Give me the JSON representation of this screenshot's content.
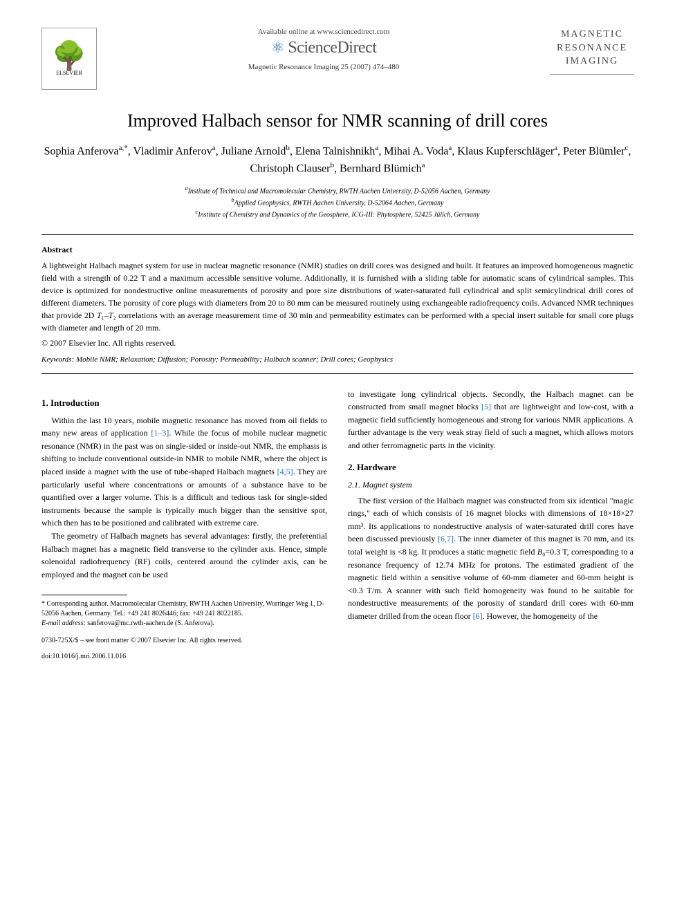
{
  "header": {
    "elsevier_label": "ELSEVIER",
    "available_online": "Available online at www.sciencedirect.com",
    "sciencedirect": "ScienceDirect",
    "journal_ref": "Magnetic Resonance Imaging 25 (2007) 474–480",
    "journal_logo_line1": "MAGNETIC",
    "journal_logo_line2": "RESONANCE",
    "journal_logo_line3": "IMAGING"
  },
  "title": "Improved Halbach sensor for NMR scanning of drill cores",
  "authors_html": "Sophia Anferova<sup>a,*</sup>, Vladimir Anferov<sup>a</sup>, Juliane Arnold<sup>b</sup>, Elena Talnishnikh<sup>a</sup>, Mihai A. Voda<sup>a</sup>, Klaus Kupferschläger<sup>a</sup>, Peter Blümler<sup>c</sup>, Christoph Clauser<sup>b</sup>, Bernhard Blümich<sup>a</sup>",
  "affiliations": {
    "a": "Institute of Technical and Macromolecular Chemistry, RWTH Aachen University, D-52056 Aachen, Germany",
    "b": "Applied Geophysics, RWTH Aachen University, D-52064 Aachen, Germany",
    "c": "Institute of Chemistry and Dynamics of the Geosphere, ICG-III: Phytosphere, 52425 Jülich, Germany"
  },
  "abstract": {
    "label": "Abstract",
    "text": "A lightweight Halbach magnet system for use in nuclear magnetic resonance (NMR) studies on drill cores was designed and built. It features an improved homogeneous magnetic field with a strength of 0.22 T and a maximum accessible sensitive volume. Additionally, it is furnished with a sliding table for automatic scans of cylindrical samples. This device is optimized for nondestructive online measurements of porosity and pore size distributions of water-saturated full cylindrical and split semicylindrical drill cores of different diameters. The porosity of core plugs with diameters from 20 to 80 mm can be measured routinely using exchangeable radiofrequency coils. Advanced NMR techniques that provide 2D T₁–T₂ correlations with an average measurement time of 30 min and permeability estimates can be performed with a special insert suitable for small core plugs with diameter and length of 20 mm.",
    "copyright": "© 2007 Elsevier Inc. All rights reserved."
  },
  "keywords": "Keywords: Mobile NMR; Relaxation; Diffusion; Porosity; Permeability; Halbach scanner; Drill cores; Geophysics",
  "body": {
    "intro_heading": "1. Introduction",
    "intro_p1": "Within the last 10 years, mobile magnetic resonance has moved from oil fields to many new areas of application [1–3]. While the focus of mobile nuclear magnetic resonance (NMR) in the past was on single-sided or inside-out NMR, the emphasis is shifting to include conventional outside-in NMR to mobile NMR, where the object is placed inside a magnet with the use of tube-shaped Halbach magnets [4,5]. They are particularly useful where concentrations or amounts of a substance have to be quantified over a larger volume. This is a difficult and tedious task for single-sided instruments because the sample is typically much bigger than the sensitive spot, which then has to be positioned and calibrated with extreme care.",
    "intro_p2": "The geometry of Halbach magnets has several advantages: firstly, the preferential Halbach magnet has a magnetic field transverse to the cylinder axis. Hence, simple solenoidal radiofrequency (RF) coils, centered around the cylinder axis, can be employed and the magnet can be used",
    "intro_p2_cont": "to investigate long cylindrical objects. Secondly, the Halbach magnet can be constructed from small magnet blocks [5] that are lightweight and low-cost, with a magnetic field sufficiently homogeneous and strong for various NMR applications. A further advantage is the very weak stray field of such a magnet, which allows motors and other ferromagnetic parts in the vicinity.",
    "hardware_heading": "2. Hardware",
    "magnet_heading": "2.1. Magnet system",
    "magnet_p1": "The first version of the Halbach magnet was constructed from six identical \"magic rings,\" each of which consists of 16 magnet blocks with dimensions of 18×18×27 mm³. Its applications to nondestructive analysis of water-saturated drill cores have been discussed previously [6,7]. The inner diameter of this magnet is 70 mm, and its total weight is <8 kg. It produces a static magnetic field B₀=0.3 T, corresponding to a resonance frequency of 12.74 MHz for protons. The estimated gradient of the magnetic field within a sensitive volume of 60-mm diameter and 60-mm height is <0.3 T/m. A scanner with such field homogeneity was found to be suitable for nondestructive measurements of the porosity of standard drill cores with 60-mm diameter drilled from the ocean floor [6]. However, the homogeneity of the"
  },
  "footnote": {
    "corresponding": "* Corresponding author. Macromolecular Chemistry, RWTH Aachen University, Worringer Weg 1, D-52056 Aachen, Germany. Tel.: +49 241 8026446; fax: +49 241 8022185.",
    "email_label": "E-mail address:",
    "email": "sanferova@mc.rwth-aachen.de (S. Anferova).",
    "front_matter": "0730-725X/$ – see front matter © 2007 Elsevier Inc. All rights reserved.",
    "doi": "doi:10.1016/j.mri.2006.11.016"
  },
  "colors": {
    "link": "#2a6fb5",
    "text": "#000000",
    "bg": "#ffffff",
    "gray": "#555555"
  },
  "typography": {
    "title_fontsize": 26,
    "author_fontsize": 16,
    "body_fontsize": 12,
    "footnote_fontsize": 10,
    "font_family": "Georgia, Times New Roman, serif"
  }
}
